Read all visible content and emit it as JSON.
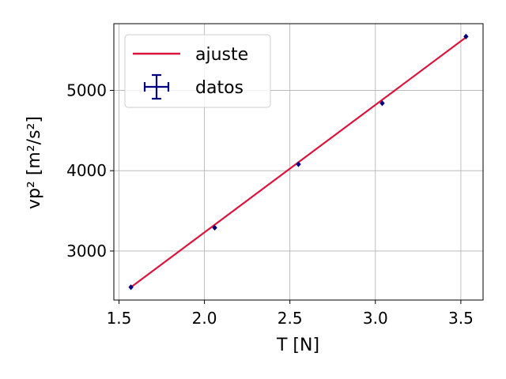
{
  "chart_data": {
    "type": "scatter",
    "xlabel": "T [N]",
    "ylabel": "vp² [m²/s²]",
    "xlim": [
      1.47,
      3.63
    ],
    "ylim": [
      2390,
      5830
    ],
    "xticks": [
      "1.5",
      "2.0",
      "2.5",
      "3.0",
      "3.5"
    ],
    "yticks": [
      "3000",
      "4000",
      "5000"
    ],
    "grid": true,
    "legend_position": "top-left",
    "series": [
      {
        "name": "ajuste",
        "kind": "line",
        "color": "#dc143c",
        "x": [
          1.57,
          3.53
        ],
        "y": [
          2550,
          5660
        ]
      },
      {
        "name": "datos",
        "kind": "errorbar-points",
        "color": "#000080",
        "x": [
          1.57,
          2.06,
          2.55,
          3.04,
          3.53
        ],
        "y": [
          2550,
          3290,
          4080,
          4840,
          5670
        ]
      }
    ]
  }
}
